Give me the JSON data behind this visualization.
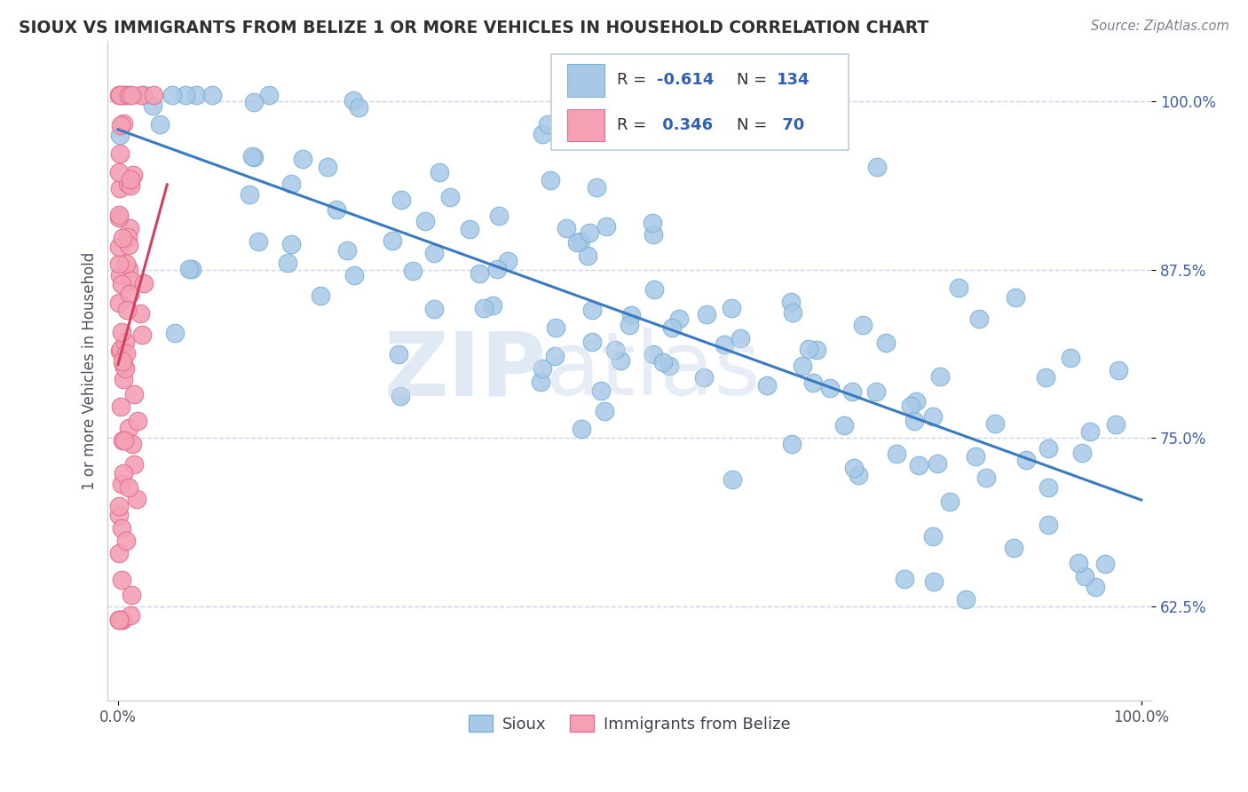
{
  "title": "SIOUX VS IMMIGRANTS FROM BELIZE 1 OR MORE VEHICLES IN HOUSEHOLD CORRELATION CHART",
  "source": "Source: ZipAtlas.com",
  "ylabel": "1 or more Vehicles in Household",
  "yticks": [
    0.625,
    0.75,
    0.875,
    1.0
  ],
  "ytick_labels": [
    "62.5%",
    "75.0%",
    "87.5%",
    "100.0%"
  ],
  "xlim": [
    -0.01,
    1.01
  ],
  "ylim": [
    0.555,
    1.045
  ],
  "sioux_color": "#a8c8e8",
  "sioux_edge": "#7ab0d4",
  "belize_color": "#f4a0b5",
  "belize_edge": "#e07090",
  "trend_sioux_color": "#3a7abf",
  "trend_belize_color": "#d04060",
  "watermark_zip": "ZIP",
  "watermark_atlas": "atlas",
  "background_color": "#ffffff",
  "grid_color": "#c8d4e8",
  "title_color": "#303030",
  "legend_box_color": "#c0ccd8",
  "sioux_trend_start_y": 0.975,
  "sioux_trend_end_y": 0.72,
  "belize_trend_start_x": 0.0,
  "belize_trend_end_x": 0.05
}
